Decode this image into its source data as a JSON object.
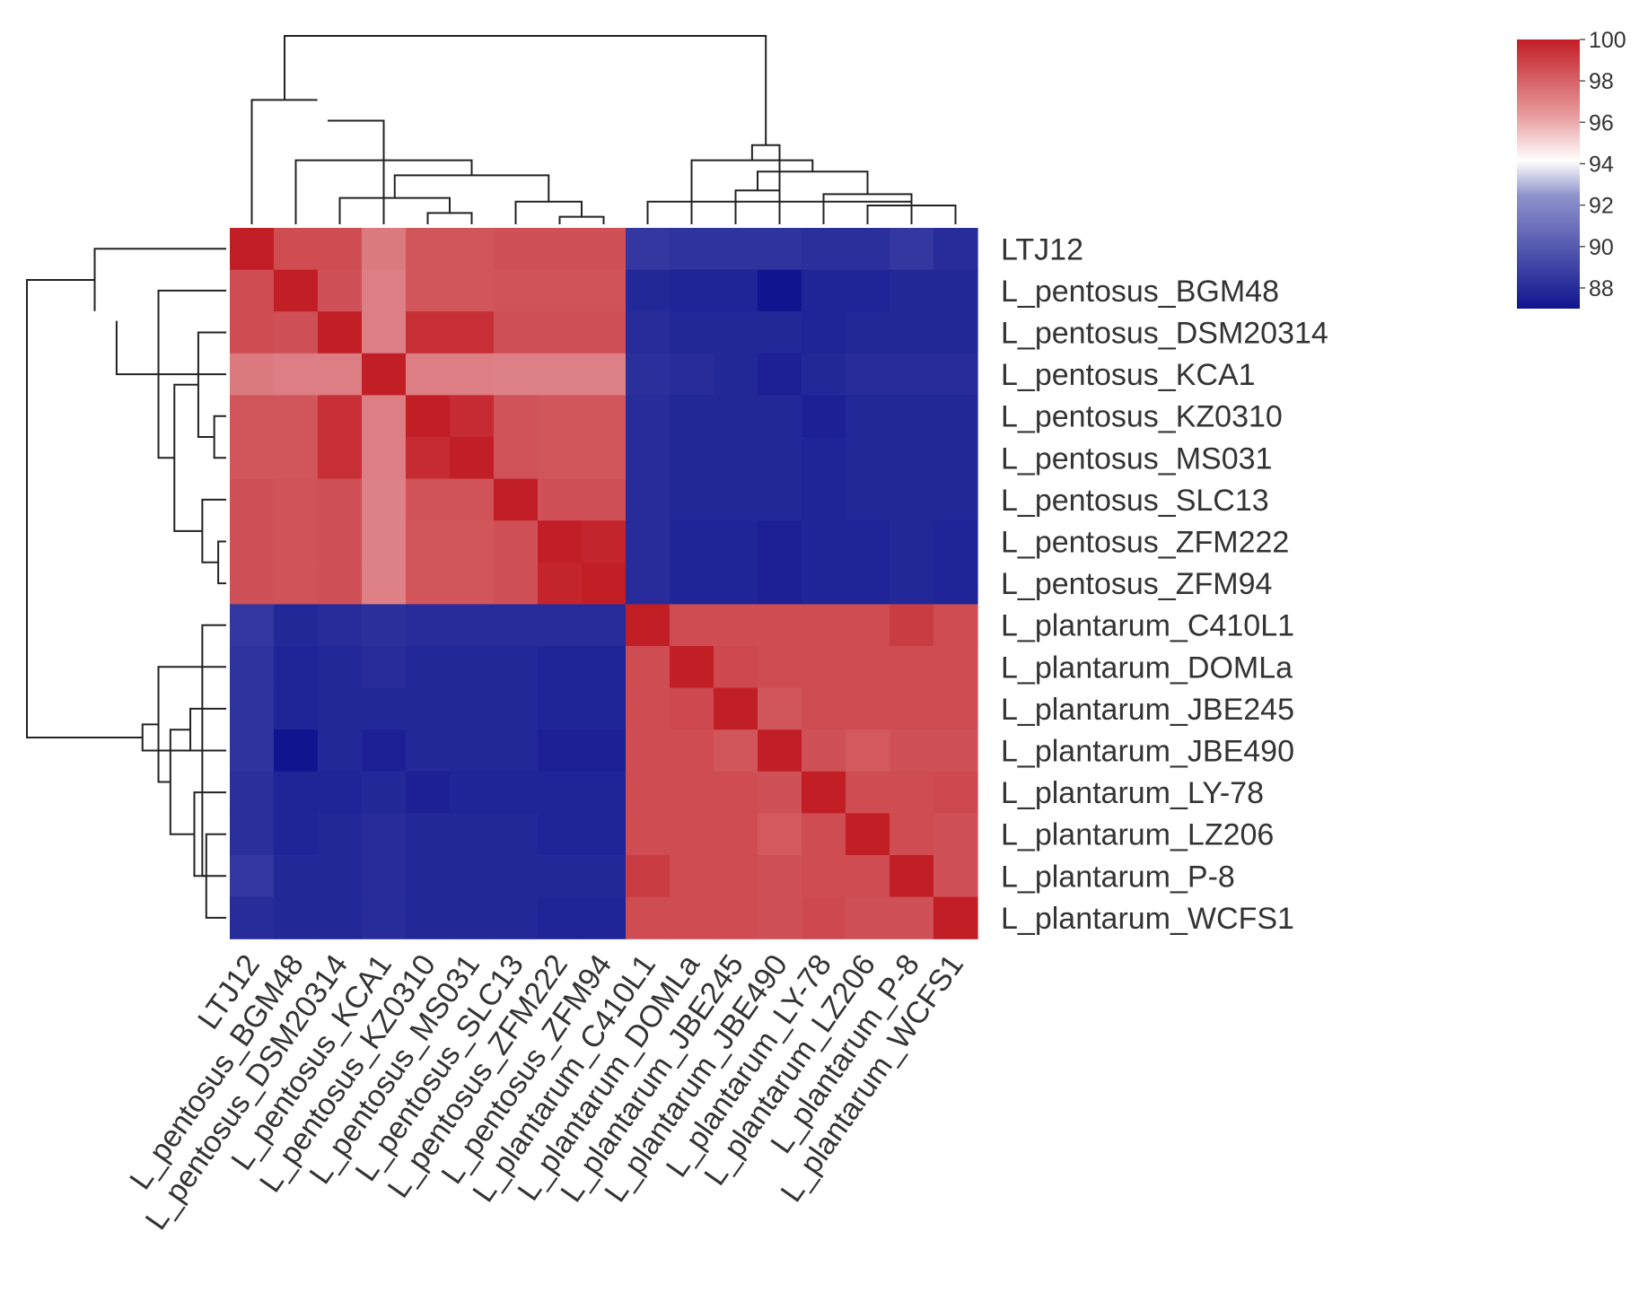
{
  "chart_data": {
    "type": "heatmap",
    "title": "",
    "colormap": {
      "low": "#10158f",
      "mid": "#ffffff",
      "high": "#c21e26"
    },
    "value_range": [
      87,
      100
    ],
    "colorbar": {
      "ticks": [
        100,
        98,
        96,
        94,
        92,
        90,
        88
      ]
    },
    "labels": [
      "LTJ12",
      "L_pentosus_BGM48",
      "L_pentosus_DSM20314",
      "L_pentosus_KCA1",
      "L_pentosus_KZ0310",
      "L_pentosus_MS031",
      "L_pentosus_SLC13",
      "L_pentosus_ZFM222",
      "L_pentosus_ZFM94",
      "L_plantarum_C410L1",
      "L_plantarum_DOMLa",
      "L_plantarum_JBE245",
      "L_plantarum_JBE490",
      "L_plantarum_LY-78",
      "L_plantarum_LZ206",
      "L_plantarum_P-8",
      "L_plantarum_WCFS1"
    ],
    "values": [
      [
        100,
        98.6,
        98.6,
        97.2,
        98.3,
        98.3,
        98.5,
        98.5,
        98.5,
        87.9,
        87.8,
        87.8,
        87.8,
        87.7,
        87.7,
        87.9,
        87.6
      ],
      [
        98.6,
        100,
        98.5,
        97.1,
        98.3,
        98.3,
        98.4,
        98.4,
        98.4,
        87.5,
        87.4,
        87.4,
        87.0,
        87.4,
        87.4,
        87.5,
        87.5
      ],
      [
        98.6,
        98.5,
        100,
        97.1,
        99.5,
        99.5,
        98.5,
        98.5,
        98.5,
        87.6,
        87.5,
        87.5,
        87.5,
        87.4,
        87.5,
        87.5,
        87.5
      ],
      [
        97.2,
        97.1,
        97.1,
        100,
        97.1,
        97.1,
        97.0,
        97.0,
        97.0,
        87.7,
        87.6,
        87.5,
        87.3,
        87.5,
        87.6,
        87.6,
        87.6
      ],
      [
        98.3,
        98.3,
        99.5,
        97.1,
        100,
        99.6,
        98.4,
        98.3,
        98.3,
        87.6,
        87.5,
        87.5,
        87.5,
        87.3,
        87.5,
        87.5,
        87.5
      ],
      [
        98.3,
        98.3,
        99.5,
        97.1,
        99.6,
        100,
        98.4,
        98.3,
        98.3,
        87.6,
        87.5,
        87.5,
        87.5,
        87.4,
        87.5,
        87.5,
        87.5
      ],
      [
        98.5,
        98.4,
        98.5,
        97.0,
        98.4,
        98.4,
        100,
        98.5,
        98.5,
        87.6,
        87.5,
        87.5,
        87.5,
        87.4,
        87.5,
        87.5,
        87.5
      ],
      [
        98.5,
        98.4,
        98.5,
        97.0,
        98.3,
        98.3,
        98.5,
        100,
        99.8,
        87.6,
        87.4,
        87.4,
        87.3,
        87.4,
        87.4,
        87.5,
        87.4
      ],
      [
        98.5,
        98.4,
        98.5,
        97.0,
        98.3,
        98.3,
        98.5,
        99.8,
        100,
        87.6,
        87.4,
        87.4,
        87.3,
        87.4,
        87.4,
        87.5,
        87.4
      ],
      [
        87.9,
        87.5,
        87.6,
        87.7,
        87.6,
        87.6,
        87.6,
        87.6,
        87.6,
        100,
        98.6,
        98.6,
        98.6,
        98.6,
        98.6,
        99.1,
        98.6
      ],
      [
        87.8,
        87.4,
        87.5,
        87.6,
        87.5,
        87.5,
        87.5,
        87.4,
        87.4,
        98.6,
        100,
        98.7,
        98.6,
        98.6,
        98.6,
        98.6,
        98.6
      ],
      [
        87.8,
        87.4,
        87.5,
        87.5,
        87.5,
        87.5,
        87.5,
        87.4,
        87.4,
        98.6,
        98.7,
        100,
        98.3,
        98.6,
        98.6,
        98.6,
        98.6
      ],
      [
        87.8,
        87.0,
        87.5,
        87.3,
        87.5,
        87.5,
        87.5,
        87.3,
        87.3,
        98.6,
        98.6,
        98.3,
        100,
        98.5,
        98.2,
        98.5,
        98.5
      ],
      [
        87.7,
        87.4,
        87.4,
        87.5,
        87.3,
        87.4,
        87.4,
        87.4,
        87.4,
        98.6,
        98.6,
        98.6,
        98.5,
        100,
        98.6,
        98.6,
        98.7
      ],
      [
        87.7,
        87.4,
        87.5,
        87.6,
        87.5,
        87.5,
        87.5,
        87.4,
        87.4,
        98.6,
        98.6,
        98.6,
        98.2,
        98.6,
        100,
        98.6,
        98.5
      ],
      [
        87.9,
        87.5,
        87.5,
        87.6,
        87.5,
        87.5,
        87.5,
        87.5,
        87.5,
        99.1,
        98.6,
        98.6,
        98.5,
        98.6,
        98.6,
        100,
        98.5
      ],
      [
        87.6,
        87.5,
        87.5,
        87.6,
        87.5,
        87.5,
        87.5,
        87.4,
        87.4,
        98.6,
        98.6,
        98.6,
        98.5,
        98.7,
        98.5,
        98.5,
        100
      ]
    ]
  }
}
